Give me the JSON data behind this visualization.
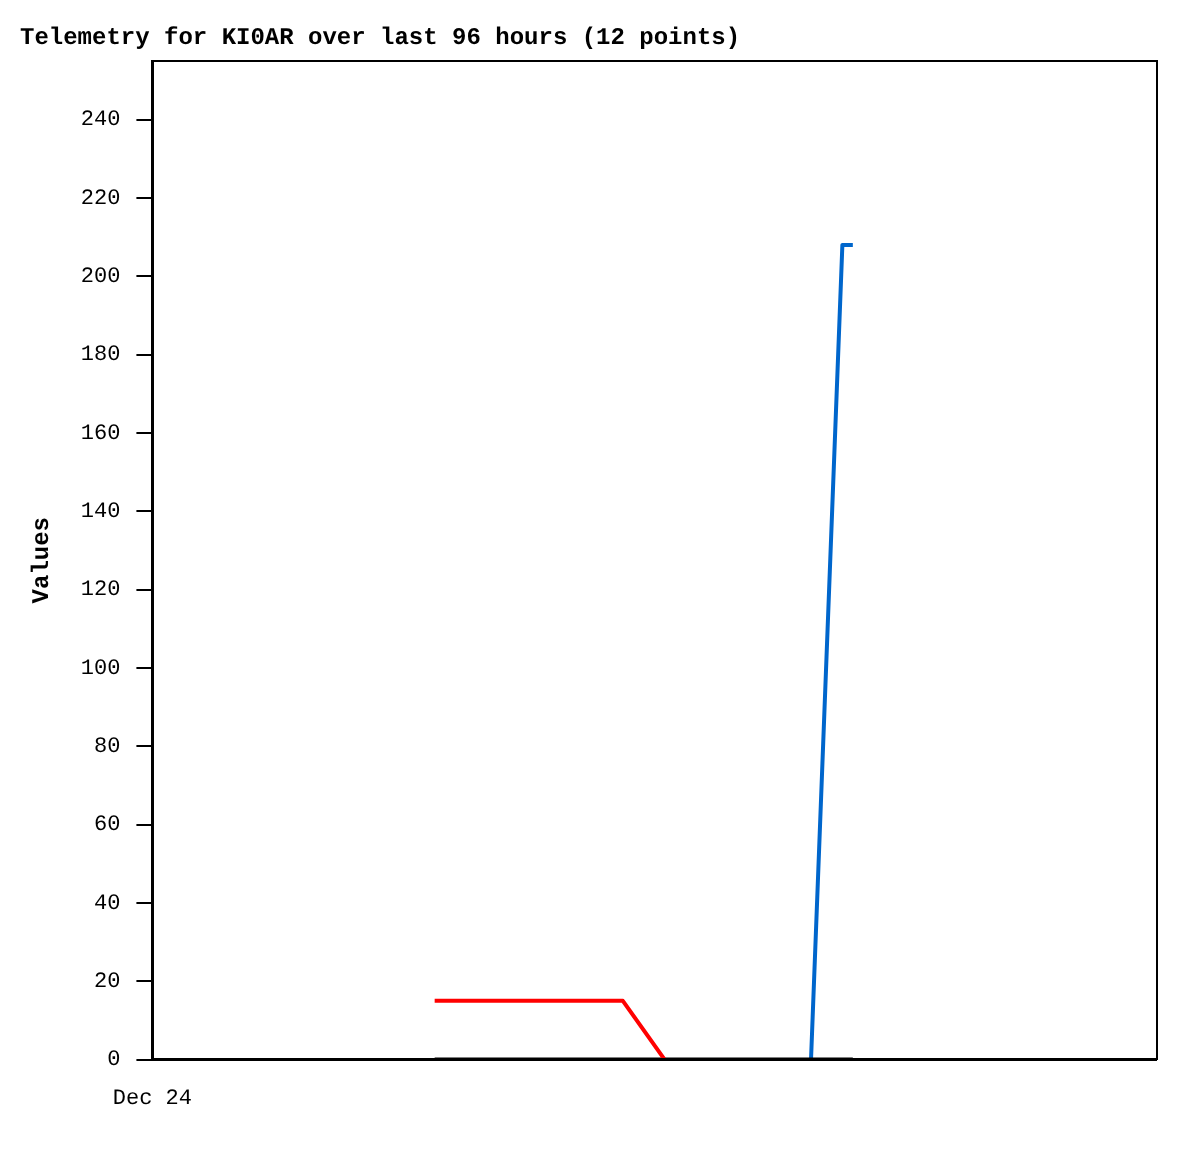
{
  "chart_data": {
    "type": "line",
    "title": "Telemetry for KI0AR over last 96 hours (12 points)",
    "ylabel": "Values",
    "annotations": [
      "Dec 24"
    ],
    "ylim": [
      0,
      255
    ],
    "yticks": [
      0,
      20,
      40,
      60,
      80,
      100,
      120,
      140,
      160,
      180,
      200,
      220,
      240
    ],
    "grid": false,
    "legend": false,
    "marker": "none",
    "line_style": "solid",
    "categories": [
      null,
      null,
      null,
      null,
      null,
      null,
      null,
      null,
      null,
      null,
      null,
      null,
      null,
      null,
      null,
      null,
      null,
      null,
      null,
      null,
      null,
      null,
      null,
      null,
      null,
      null,
      null,
      null,
      null,
      null,
      null,
      null,
      null,
      null,
      null,
      null,
      null,
      null,
      null,
      null,
      null,
      null,
      null,
      null,
      null,
      null,
      null,
      null,
      null,
      null,
      null,
      null,
      null,
      null,
      null,
      null,
      null,
      null,
      null,
      null,
      null,
      null,
      null,
      null,
      null,
      null,
      null,
      null,
      null,
      null,
      null,
      null,
      null,
      null,
      null,
      null,
      null,
      null,
      null,
      null,
      null,
      null,
      null,
      null,
      null,
      null,
      null,
      null,
      null,
      null,
      null,
      null,
      null,
      null,
      null,
      null,
      null
    ],
    "series": [
      {
        "color": "#ff0000",
        "values": [
          null,
          null,
          null,
          null,
          null,
          null,
          null,
          null,
          null,
          null,
          null,
          null,
          null,
          null,
          null,
          null,
          null,
          null,
          null,
          null,
          null,
          null,
          null,
          null,
          null,
          null,
          null,
          15,
          null,
          null,
          null,
          null,
          null,
          null,
          null,
          null,
          null,
          null,
          null,
          null,
          null,
          null,
          null,
          null,
          null,
          15,
          null,
          null,
          null,
          0,
          null,
          null,
          null,
          null,
          null,
          null,
          null,
          null,
          null,
          null,
          null,
          null,
          null,
          null,
          null,
          null,
          null,
          null,
          null,
          null,
          null,
          null,
          null,
          null,
          null,
          null,
          null,
          null,
          null,
          null,
          null,
          null,
          null,
          null,
          null,
          null,
          null,
          null,
          null,
          null,
          null,
          null,
          null,
          null,
          null,
          null,
          null
        ]
      },
      {
        "color": "#000000",
        "values": [
          null,
          null,
          null,
          null,
          null,
          null,
          null,
          null,
          null,
          null,
          null,
          null,
          null,
          null,
          null,
          null,
          null,
          null,
          null,
          null,
          null,
          null,
          null,
          null,
          null,
          null,
          null,
          0,
          null,
          null,
          null,
          null,
          null,
          null,
          null,
          null,
          null,
          null,
          null,
          null,
          null,
          null,
          null,
          null,
          null,
          null,
          null,
          null,
          null,
          null,
          null,
          null,
          null,
          null,
          null,
          null,
          null,
          null,
          null,
          null,
          null,
          null,
          null,
          null,
          null,
          null,
          null,
          0,
          null,
          null,
          null,
          null,
          null,
          null,
          null,
          null,
          null,
          null,
          null,
          null,
          null,
          null,
          null,
          null,
          null,
          null,
          null,
          null,
          null,
          null,
          null,
          null,
          null,
          null,
          null,
          null,
          null
        ]
      },
      {
        "color": "#0066cc",
        "values": [
          null,
          null,
          null,
          null,
          null,
          null,
          null,
          null,
          null,
          null,
          null,
          null,
          null,
          null,
          null,
          null,
          null,
          null,
          null,
          null,
          null,
          null,
          null,
          null,
          null,
          null,
          null,
          null,
          null,
          null,
          null,
          null,
          null,
          null,
          null,
          null,
          null,
          null,
          null,
          null,
          null,
          null,
          null,
          null,
          null,
          null,
          null,
          null,
          null,
          null,
          null,
          null,
          null,
          null,
          null,
          null,
          null,
          null,
          null,
          null,
          null,
          null,
          null,
          0,
          null,
          null,
          208,
          208,
          null,
          null,
          null,
          null,
          null,
          null,
          null,
          null,
          null,
          null,
          null,
          null,
          null,
          null,
          null,
          null,
          null,
          null,
          null,
          null,
          null,
          null,
          null,
          null,
          null,
          null,
          null,
          null,
          null
        ]
      }
    ]
  }
}
